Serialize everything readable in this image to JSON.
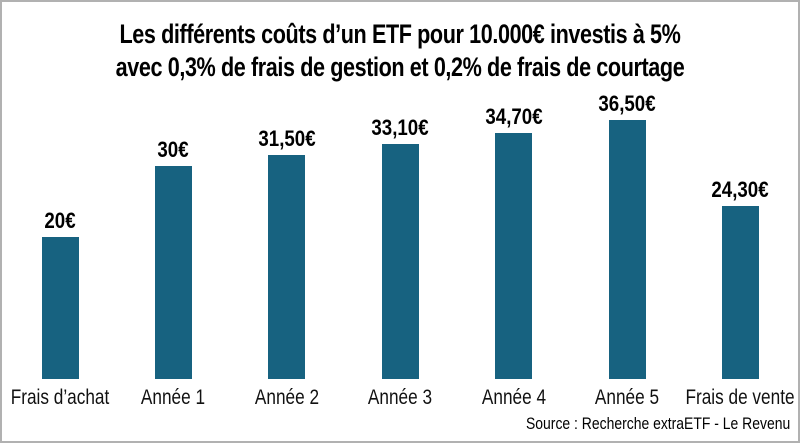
{
  "title": {
    "line1": "Les différents coûts d’un ETF pour 10.000€ investis à 5%",
    "line2": "avec 0,3% de frais de gestion et 0,2% de frais de courtage"
  },
  "source": "Source : Recherche extraETF - Le Revenu",
  "colors": {
    "bar": "#176280",
    "text": "#000000",
    "frame_border": "#b1b1b1",
    "background": "#ffffff"
  },
  "chart_data": {
    "type": "bar",
    "title": "Les différents coûts d’un ETF pour 10.000€ investis à 5% avec 0,3% de frais de gestion et 0,2% de frais de courtage",
    "categories": [
      "Frais d’achat",
      "Année 1",
      "Année 2",
      "Année 3",
      "Année 4",
      "Année 5",
      "Frais de vente"
    ],
    "values": [
      20,
      30,
      31.5,
      33.1,
      34.7,
      36.5,
      24.3
    ],
    "value_labels": [
      "20€",
      "30€",
      "31,50€",
      "33,10€",
      "34,70€",
      "36,50€",
      "24,30€"
    ],
    "unit": "€",
    "bar_color": "#176280",
    "xlabel": "",
    "ylabel": "",
    "ylim": [
      0,
      40
    ],
    "grid": false,
    "legend": false,
    "axes_hidden": true,
    "value_labels_position": "above-bars",
    "source": "Source : Recherche extraETF - Le Revenu"
  }
}
